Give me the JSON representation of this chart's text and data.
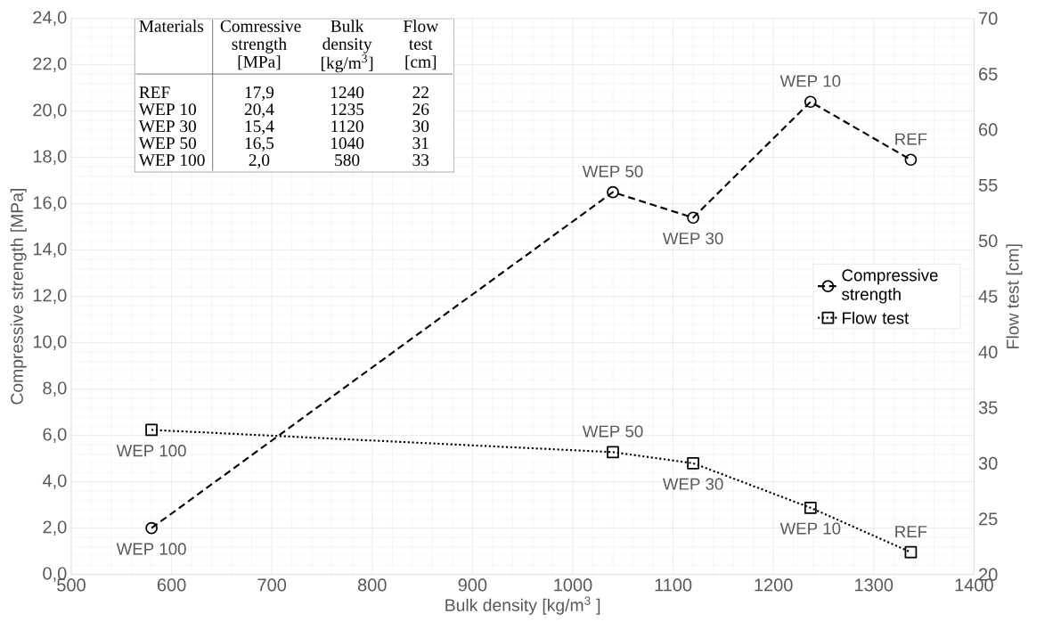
{
  "chart_data": {
    "type": "line",
    "xlabel": "Bulk density [kg/m$^{3}$ ]",
    "ylabel": "Compressive strength [MPa]",
    "y2label": "Flow test [cm]",
    "x": [
      580,
      1040,
      1120,
      1237,
      1337
    ],
    "series": [
      {
        "name": "Compressive strength",
        "color": "#000000",
        "values": [
          2.0,
          16.5,
          15.4,
          20.4,
          17.9
        ],
        "marker": "circle",
        "line_style": "dashed",
        "value_labels": [
          "WEP 100",
          "WEP 50",
          "WEP 30",
          "WEP 10",
          "REF"
        ]
      },
      {
        "name": "Flow test",
        "color": "#000000",
        "axis": "y2",
        "values": [
          33,
          31,
          30,
          26,
          22
        ],
        "marker": "square",
        "line_style": "dotted",
        "value_labels": [
          "WEP 100",
          "WEP 50",
          "WEP 30",
          "WEP 10",
          "REF"
        ]
      }
    ],
    "xlim": [
      500,
      1400
    ],
    "xticks": [
      500,
      600,
      700,
      800,
      900,
      1000,
      1100,
      1200,
      1300,
      1400
    ],
    "ylim": [
      0,
      24
    ],
    "yticks": [
      {
        "value": 0,
        "label": "0,0"
      },
      {
        "value": 2,
        "label": "2,0"
      },
      {
        "value": 4,
        "label": "4,0"
      },
      {
        "value": 6,
        "label": "6,0"
      },
      {
        "value": 8,
        "label": "8,0"
      },
      {
        "value": 10,
        "label": "10,0"
      },
      {
        "value": 12,
        "label": "12,0"
      },
      {
        "value": 14,
        "label": "14,0"
      },
      {
        "value": 16,
        "label": "16,0"
      },
      {
        "value": 18,
        "label": "18,0"
      },
      {
        "value": 20,
        "label": "20,0"
      },
      {
        "value": 22,
        "label": "22,0"
      },
      {
        "value": 24,
        "label": "24,0"
      }
    ],
    "y2lim": [
      20,
      70
    ],
    "y2ticks": [
      20,
      25,
      30,
      35,
      40,
      45,
      50,
      55,
      60,
      65,
      70
    ],
    "grid": true,
    "legend": "right",
    "annotations": [
      "Materials",
      "Comressive strength [MPa]",
      "Bulk density [kg/m$^{3}$]",
      "Flow test [cm]",
      "REF",
      "17,9",
      "1240",
      "22",
      "WEP 10",
      "20,4",
      "1235",
      "26",
      "WEP 30",
      "15,4",
      "1120",
      "30",
      "WEP 50",
      "16,5",
      "1040",
      "31",
      "WEP 100",
      "2,0",
      "580",
      "33"
    ]
  }
}
